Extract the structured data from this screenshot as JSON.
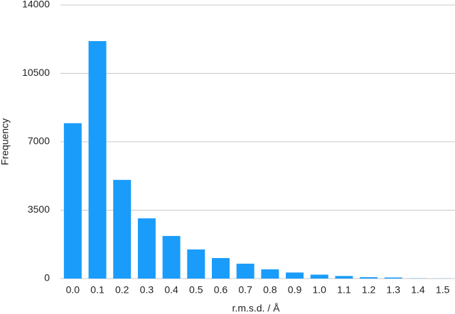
{
  "chart_data": {
    "type": "bar",
    "x_label": "r.m.s.d. / Å",
    "y_label": "Frequency",
    "categories": [
      "0.0",
      "0.1",
      "0.2",
      "0.3",
      "0.4",
      "0.5",
      "0.6",
      "0.7",
      "0.8",
      "0.9",
      "1.0",
      "1.1",
      "1.2",
      "1.3",
      "1.4",
      "1.5"
    ],
    "values": [
      7950,
      12150,
      5050,
      3080,
      2180,
      1490,
      1050,
      760,
      470,
      310,
      200,
      130,
      70,
      55,
      10,
      5
    ],
    "color": "#1a9cfb",
    "ylim": [
      0,
      14000
    ],
    "yticks": [
      0,
      3500,
      7000,
      10500,
      14000
    ],
    "grid": true
  }
}
